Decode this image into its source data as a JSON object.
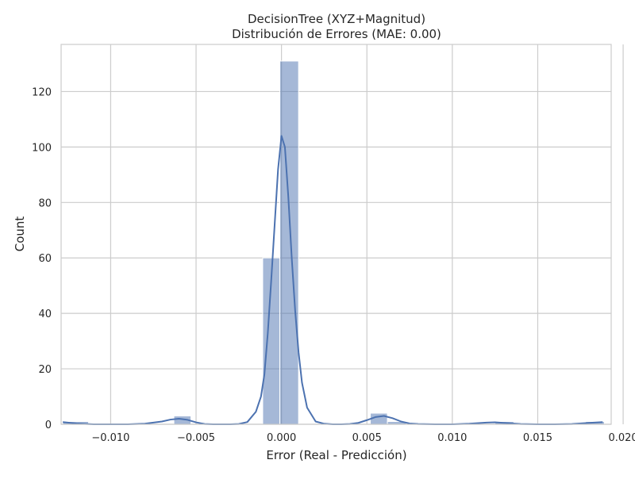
{
  "chart_data": {
    "type": "bar",
    "title": "DecisionTree (XYZ+Magnitud)",
    "subtitle": "Distribución de Errores (MAE: 0.00)",
    "xlabel": "Error (Real - Predicción)",
    "ylabel": "Count",
    "xlim": [
      -0.0129,
      0.0193
    ],
    "ylim": [
      0,
      137
    ],
    "x_ticks": [
      -0.01,
      -0.005,
      0.0,
      0.005,
      0.01,
      0.015,
      0.02
    ],
    "x_tick_labels": [
      "−0.010",
      "−0.005",
      "0.000",
      "0.005",
      "0.010",
      "0.015",
      "0.020"
    ],
    "y_ticks": [
      0,
      20,
      40,
      60,
      80,
      100,
      120
    ],
    "y_tick_labels": [
      "0",
      "20",
      "40",
      "60",
      "80",
      "100",
      "120"
    ],
    "grid": true,
    "bar_color": "#4c72b0",
    "bar_opacity": 0.5,
    "bins": [
      {
        "x0": -0.0128,
        "x1": -0.0113,
        "count": 1
      },
      {
        "x0": -0.0063,
        "x1": -0.0053,
        "count": 3
      },
      {
        "x0": -0.0011,
        "x1": -0.0001,
        "count": 60
      },
      {
        "x0": -0.0001,
        "x1": 0.001,
        "count": 131
      },
      {
        "x0": 0.0052,
        "x1": 0.0062,
        "count": 4
      },
      {
        "x0": 0.0062,
        "x1": 0.0073,
        "count": 1
      },
      {
        "x0": 0.0125,
        "x1": 0.0136,
        "count": 1
      },
      {
        "x0": 0.0178,
        "x1": 0.0189,
        "count": 1
      }
    ],
    "kde": {
      "name": "KDE",
      "color": "#4c72b0",
      "x": [
        -0.0128,
        -0.012,
        -0.011,
        -0.01,
        -0.009,
        -0.008,
        -0.007,
        -0.0065,
        -0.006,
        -0.0055,
        -0.005,
        -0.0045,
        -0.004,
        -0.0035,
        -0.003,
        -0.0025,
        -0.002,
        -0.0015,
        -0.0012,
        -0.001,
        -0.0008,
        -0.0006,
        -0.0004,
        -0.0002,
        0.0,
        0.0002,
        0.0004,
        0.0006,
        0.0008,
        0.001,
        0.0012,
        0.0015,
        0.002,
        0.0025,
        0.003,
        0.0035,
        0.004,
        0.0045,
        0.005,
        0.0055,
        0.006,
        0.0065,
        0.007,
        0.0075,
        0.008,
        0.009,
        0.01,
        0.011,
        0.012,
        0.0125,
        0.013,
        0.014,
        0.015,
        0.016,
        0.017,
        0.018,
        0.0188
      ],
      "y": [
        0.8,
        0.3,
        0.0,
        0.0,
        0.0,
        0.2,
        1.0,
        1.7,
        2.0,
        1.6,
        0.7,
        0.1,
        0.0,
        0.0,
        0.0,
        0.1,
        0.8,
        4.5,
        10.0,
        18.0,
        33.0,
        52.0,
        72.0,
        92.0,
        104.0,
        100.0,
        82.0,
        60.0,
        41.0,
        26.0,
        15.0,
        6.0,
        1.0,
        0.2,
        0.0,
        0.0,
        0.1,
        0.5,
        1.5,
        2.6,
        3.0,
        2.2,
        1.0,
        0.3,
        0.1,
        0.0,
        0.0,
        0.2,
        0.6,
        0.7,
        0.5,
        0.1,
        0.0,
        0.0,
        0.1,
        0.5,
        0.8
      ]
    }
  }
}
